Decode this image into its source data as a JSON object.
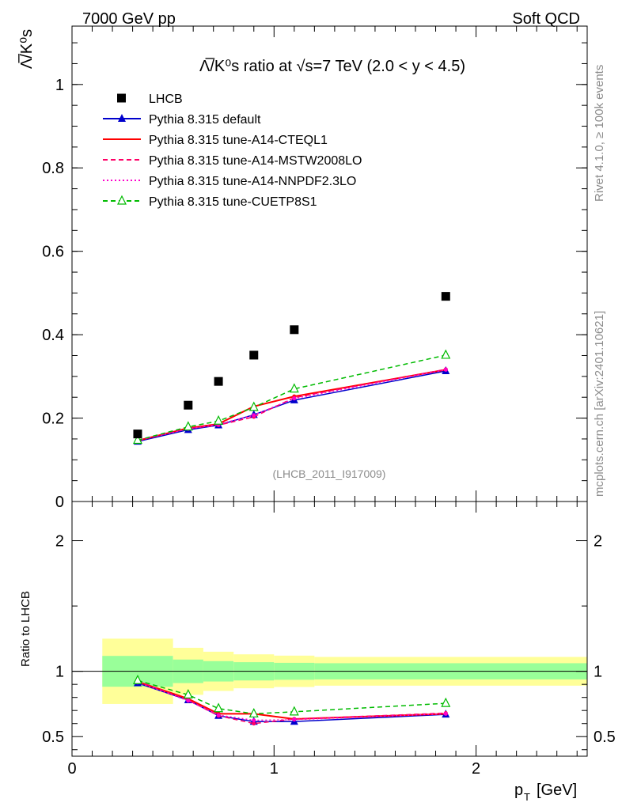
{
  "header": {
    "left": "7000 GeV pp",
    "right": "Soft QCD"
  },
  "side_text": {
    "rivet": "Rivet 4.1.0, ≥ 100k events",
    "mcplots": "mcplots.cern.ch [arXiv:2401.10621]"
  },
  "chart_data": {
    "type": "line",
    "title": "Λ̅/K⁰s ratio at √s=7 TeV (2.0 < y < 4.5)",
    "title_main": "ratio at √s=7 TeV (2.0 < y < 4.5)",
    "analysis_tag": "(LHCB_2011_I917009)",
    "ylabel": "Λ̅/K⁰s",
    "xlabel": "p_T [GeV]",
    "xlabel_text": "[GeV]",
    "xlim": [
      0,
      2.55
    ],
    "ylim": [
      0,
      1.14
    ],
    "x_ticks": [
      0,
      1,
      2
    ],
    "y_ticks": [
      0,
      0.2,
      0.4,
      0.6,
      0.8,
      1
    ],
    "x": [
      0.325,
      0.575,
      0.725,
      0.9,
      1.1,
      1.85
    ],
    "data": {
      "name": "LHCB",
      "values": [
        0.162,
        0.231,
        0.288,
        0.351,
        0.412,
        0.492
      ],
      "band_edges": [
        0.15,
        0.5,
        0.65,
        0.8,
        1.0,
        1.2,
        2.55
      ]
    },
    "series": [
      {
        "name": "Pythia 8.315 default",
        "color": "#0000cc",
        "dash": "solid",
        "marker": "triangle-filled",
        "values": [
          0.144,
          0.172,
          0.183,
          0.208,
          0.243,
          0.313
        ]
      },
      {
        "name": "Pythia 8.315 tune-A14-CTEQL1",
        "color": "#ff0000",
        "dash": "solid",
        "marker": "none",
        "values": [
          0.146,
          0.176,
          0.186,
          0.228,
          0.252,
          0.316
        ]
      },
      {
        "name": "Pythia 8.315 tune-A14-MSTW2008LO",
        "color": "#ff0066",
        "dash": "dashed",
        "marker": "none",
        "values": [
          0.147,
          0.175,
          0.183,
          0.203,
          0.249,
          0.317
        ]
      },
      {
        "name": "Pythia 8.315 tune-A14-NNPDF2.3LO",
        "color": "#ff00cc",
        "dash": "dotted",
        "marker": "none",
        "values": [
          0.146,
          0.174,
          0.185,
          0.207,
          0.247,
          0.316
        ]
      },
      {
        "name": "Pythia 8.315 tune-CUETP8S1",
        "color": "#00bb00",
        "dash": "dashed",
        "marker": "triangle-open",
        "values": [
          0.147,
          0.179,
          0.193,
          0.226,
          0.27,
          0.351
        ]
      }
    ],
    "ratio": {
      "ylabel": "Ratio to LHCB",
      "ylim": [
        0.35,
        2.3
      ],
      "y_ticks": [
        0.5,
        1,
        2
      ],
      "y_tick_labels": [
        "0.5",
        "1",
        "2"
      ],
      "band_inner": [
        0.118,
        0.09,
        0.078,
        0.07,
        0.065,
        0.062
      ],
      "band_outer": [
        0.25,
        0.18,
        0.15,
        0.13,
        0.12,
        0.11
      ],
      "series_values": [
        [
          0.91,
          0.78,
          0.66,
          0.615,
          0.615,
          0.67
        ],
        [
          0.92,
          0.79,
          0.675,
          0.675,
          0.635,
          0.675
        ],
        [
          0.925,
          0.78,
          0.66,
          0.6,
          0.635,
          0.68
        ],
        [
          0.915,
          0.775,
          0.665,
          0.625,
          0.63,
          0.675
        ],
        [
          0.93,
          0.82,
          0.715,
          0.675,
          0.69,
          0.755
        ]
      ]
    }
  }
}
